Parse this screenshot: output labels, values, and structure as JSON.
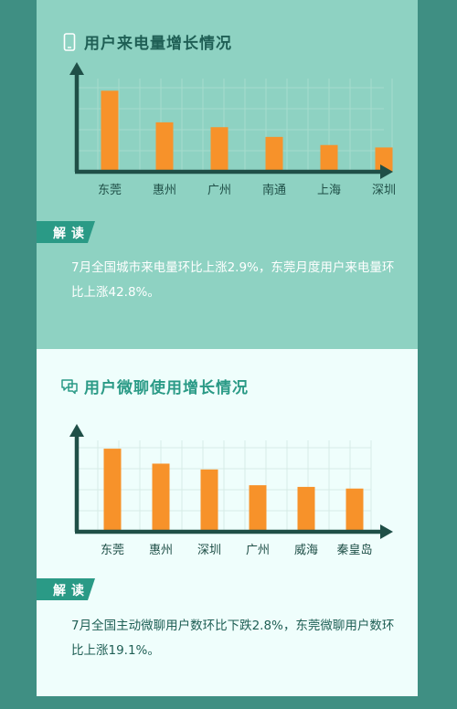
{
  "section1": {
    "title": "用户来电量增长情况",
    "icon": "phone-icon",
    "badge": "解读",
    "note": "7月全国城市来电量环比上涨2.9%，东莞月度用户来电量环比上涨42.8%。"
  },
  "section2": {
    "title": "用户微聊使用增长情况",
    "icon": "chat-icon",
    "badge": "解读",
    "note": "7月全国主动微聊用户数环比下跌2.8%，东莞微聊用户数环比上涨19.1%。"
  },
  "colors": {
    "bar": "#f7922a",
    "axis": "#1f4f47",
    "card1_bg": "#8ed2c2",
    "card2_bg": "#effefc",
    "frame": "#3f8f83",
    "badge": "#2a9a86"
  },
  "chart_data": [
    {
      "type": "bar",
      "categories": [
        "东莞",
        "惠州",
        "广州",
        "南通",
        "上海",
        "深圳"
      ],
      "values": [
        100,
        61,
        55,
        43,
        33,
        30
      ],
      "ylim": [
        0,
        115
      ],
      "grid": true
    },
    {
      "type": "bar",
      "categories": [
        "东莞",
        "惠州",
        "深圳",
        "广州",
        "威海",
        "秦皇岛"
      ],
      "values": [
        100,
        82,
        75,
        56,
        54,
        52
      ],
      "ylim": [
        0,
        110
      ],
      "grid": true
    }
  ]
}
